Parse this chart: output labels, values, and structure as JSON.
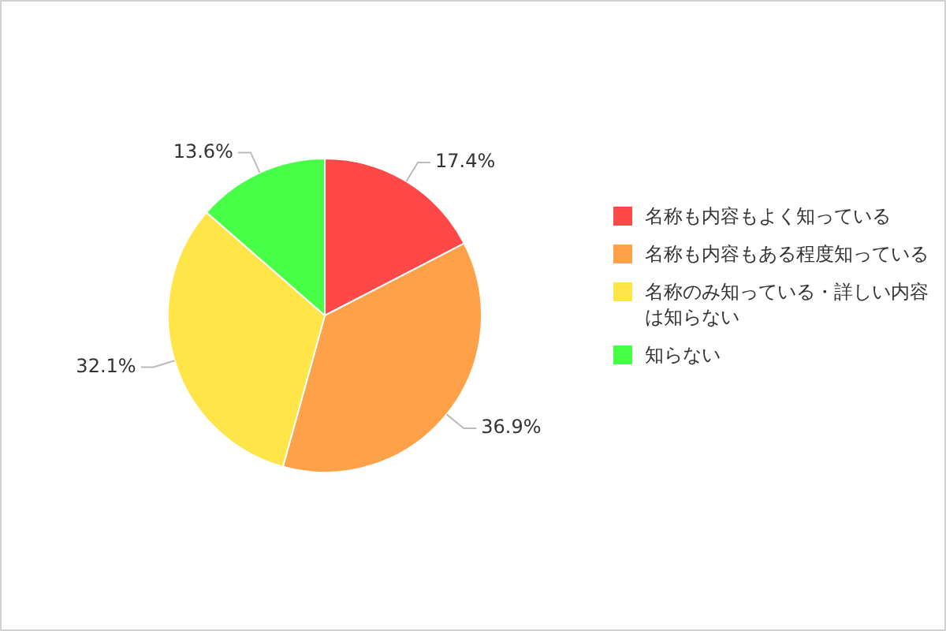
{
  "chart_data": {
    "type": "pie",
    "categories": [
      "名称も内容もよく知っている",
      "名称も内容もある程度知っている",
      "名称のみ知っている・詳しい内容は知らない",
      "知らない"
    ],
    "values": [
      17.4,
      36.9,
      32.1,
      13.6
    ],
    "colors": [
      "#ff4848",
      "#ffa148",
      "#ffe548",
      "#48ff48"
    ],
    "value_labels": [
      "17.4%",
      "36.9%",
      "32.1%",
      "13.6%"
    ],
    "legend": "right"
  }
}
